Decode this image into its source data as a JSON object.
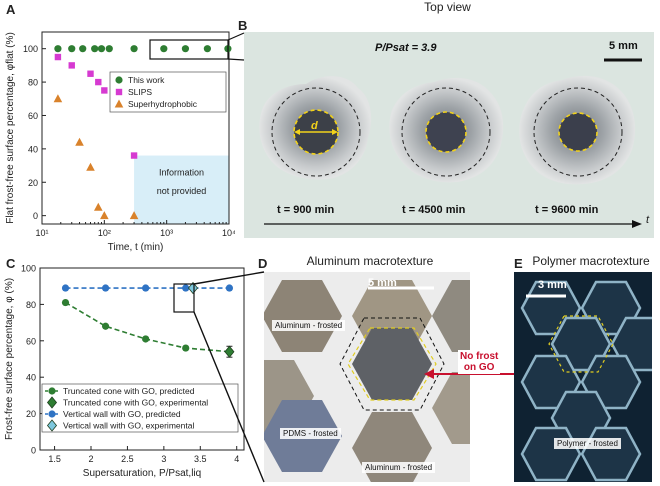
{
  "panels": {
    "a": {
      "letter": "A",
      "ylabel": "Flat frost-free surface percentage, φflat (%)",
      "xlabel": "Time, t (min)",
      "info_box": [
        "Information",
        "not provided"
      ]
    },
    "b": {
      "letter": "B",
      "top_title": "Top view",
      "ratio_label": "P/Psat = 3.9",
      "scale_label": "5 mm",
      "diameter_label": "d",
      "times": [
        "t = 900 min",
        "t = 4500 min",
        "t = 9600 min"
      ],
      "axis_label": "t"
    },
    "c": {
      "letter": "C",
      "ylabel": "Frost-free surface percentage, φ (%)",
      "xlabel": "Supersaturation, P/Psat,liq"
    },
    "d": {
      "letter": "D",
      "title": "Aluminum macrotexture",
      "scale_label": "5 mm",
      "labels": [
        "Aluminum - frosted",
        "PDMS - frosted",
        "Aluminum - frosted"
      ],
      "no_frost": [
        "No frost",
        "on GO"
      ]
    },
    "e": {
      "letter": "E",
      "title": "Polymer macrotexture",
      "scale_label": "3 mm",
      "label": "Polymer - frosted"
    }
  },
  "chart_data": [
    {
      "panel": "A",
      "type": "scatter",
      "xscale": "log",
      "xlabel": "Time, t (min)",
      "ylabel": "Flat frost-free surface percentage, φflat (%)",
      "xlim": [
        10,
        10000
      ],
      "ylim": [
        -5,
        110
      ],
      "xticks": [
        10,
        100,
        1000,
        10000
      ],
      "xtick_labels": [
        "10¹",
        "10²",
        "10³",
        "10⁴"
      ],
      "yticks": [
        0,
        20,
        40,
        60,
        80,
        100
      ],
      "legend_position": "center-right",
      "series": [
        {
          "name": "This work",
          "marker": "circle",
          "color": "#2e7d32",
          "x": [
            18,
            30,
            45,
            70,
            90,
            120,
            300,
            900,
            2000,
            4500,
            9600
          ],
          "y": [
            100,
            100,
            100,
            100,
            100,
            100,
            100,
            100,
            100,
            100,
            100
          ]
        },
        {
          "name": "SLIPS",
          "marker": "square",
          "color": "#d63ad1",
          "x": [
            18,
            30,
            60,
            80,
            100,
            300
          ],
          "y": [
            95,
            90,
            85,
            80,
            75,
            36
          ]
        },
        {
          "name": "Superhydrophobic",
          "marker": "triangle",
          "color": "#d9822b",
          "x": [
            18,
            40,
            60,
            80,
            100,
            300
          ],
          "y": [
            70,
            44,
            29,
            5,
            0,
            0
          ]
        }
      ]
    },
    {
      "panel": "C",
      "type": "scatter",
      "xlabel": "Supersaturation, P/Psat,liq",
      "ylabel": "Frost-free surface percentage, φ (%)",
      "xlim": [
        1.3,
        4.1
      ],
      "ylim": [
        0,
        100
      ],
      "xticks": [
        1.5,
        2,
        2.5,
        3,
        3.5,
        4
      ],
      "yticks": [
        0,
        20,
        40,
        60,
        80,
        100
      ],
      "legend_position": "bottom-left",
      "series": [
        {
          "name": "Truncated cone with GO, predicted",
          "marker": "circle",
          "color": "#2e7d32",
          "line": "dashed",
          "x": [
            1.65,
            2.2,
            2.75,
            3.3,
            3.9
          ],
          "y": [
            81,
            68,
            61,
            56,
            54
          ]
        },
        {
          "name": "Truncated cone with GO, experimental",
          "marker": "diamond",
          "color": "#2e7d32",
          "x": [
            3.9
          ],
          "y": [
            54
          ],
          "yerr": [
            3
          ]
        },
        {
          "name": "Vertical wall with GO, predicted",
          "marker": "circle",
          "color": "#2f73c4",
          "line": "dashed",
          "x": [
            1.65,
            2.2,
            2.75,
            3.3,
            3.9
          ],
          "y": [
            89,
            89,
            89,
            89,
            89
          ]
        },
        {
          "name": "Vertical wall with GO, experimental",
          "marker": "diamond",
          "color": "#7ec8de",
          "x": [
            3.4
          ],
          "y": [
            89
          ]
        }
      ]
    }
  ]
}
